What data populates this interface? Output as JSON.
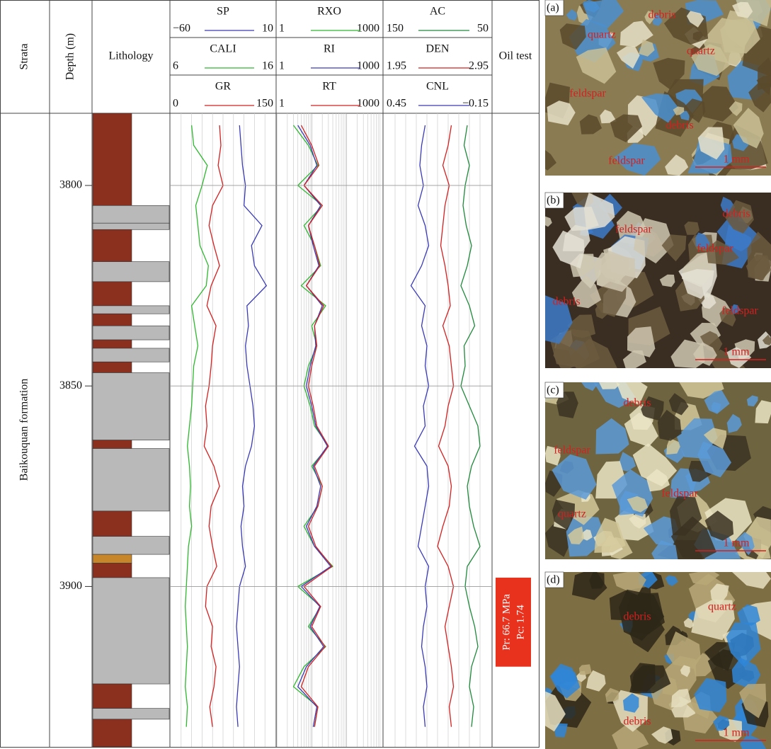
{
  "header": {
    "strata": "Strata",
    "depth": "Depth (m)",
    "lithology": "Lithology",
    "oil_test": "Oil test"
  },
  "formation": "Baikouquan formation",
  "depth_axis": {
    "lim": [
      3782,
      3940
    ],
    "ticks": [
      3800,
      3850,
      3900
    ]
  },
  "depths": [
    3785,
    3790,
    3795,
    3800,
    3805,
    3810,
    3815,
    3820,
    3825,
    3830,
    3835,
    3840,
    3845,
    3850,
    3855,
    3860,
    3865,
    3870,
    3875,
    3880,
    3885,
    3890,
    3895,
    3900,
    3905,
    3910,
    3915,
    3920,
    3925,
    3930,
    3935
  ],
  "tracks": [
    {
      "log": false,
      "curves": [
        {
          "name": "SP",
          "color": "#3a3ab8",
          "lim": [
            {
              "value": -60,
              "label": "−60"
            },
            10
          ],
          "values": [
            -14,
            -13,
            -12,
            -10,
            -11,
            1,
            -6,
            -4,
            4,
            -9,
            -8,
            -10,
            -9,
            -7,
            -5,
            -4,
            -6,
            -10,
            -12,
            -11,
            -13,
            -12,
            -10,
            -14,
            -15,
            -16,
            -15,
            -14,
            -15,
            -16,
            -15
          ]
        },
        {
          "name": "CALI",
          "color": "#2db82d",
          "lim": [
            6,
            16
          ],
          "values": [
            8.0,
            8.2,
            9.5,
            9.0,
            8.4,
            8.6,
            8.8,
            9.6,
            9.4,
            8.0,
            8.3,
            8.6,
            8.2,
            8.1,
            8.0,
            7.8,
            7.6,
            7.8,
            7.9,
            7.8,
            8.0,
            7.7,
            7.6,
            7.5,
            7.4,
            7.5,
            7.6,
            7.5,
            7.4,
            7.6,
            7.5
          ]
        },
        {
          "name": "GR",
          "color": "#d42020",
          "lim": [
            0,
            150
          ],
          "values": [
            70,
            72,
            68,
            75,
            60,
            55,
            62,
            70,
            58,
            52,
            65,
            60,
            58,
            55,
            50,
            52,
            48,
            62,
            70,
            58,
            55,
            60,
            66,
            52,
            50,
            60,
            58,
            65,
            62,
            56,
            60
          ]
        }
      ]
    },
    {
      "log": true,
      "curves": [
        {
          "name": "RXO",
          "color": "#2db82d",
          "lim": [
            1,
            1000
          ],
          "values": [
            3,
            8,
            15,
            4,
            20,
            6,
            12,
            18,
            5,
            25,
            10,
            14,
            8,
            6,
            9,
            12,
            30,
            10,
            20,
            15,
            6,
            12,
            40,
            4,
            18,
            8,
            25,
            6,
            3,
            15,
            12
          ]
        },
        {
          "name": "RI",
          "color": "#3a3ab8",
          "lim": [
            1,
            1000
          ],
          "values": [
            4,
            9,
            14,
            6,
            18,
            8,
            11,
            16,
            7,
            20,
            12,
            13,
            9,
            7,
            10,
            13,
            28,
            11,
            18,
            14,
            7,
            12,
            35,
            5,
            17,
            9,
            22,
            7,
            4,
            14,
            11
          ]
        },
        {
          "name": "RT",
          "color": "#d42020",
          "lim": [
            1,
            1000
          ],
          "values": [
            5,
            10,
            16,
            6,
            20,
            8,
            12,
            17,
            7,
            22,
            12,
            14,
            10,
            8,
            11,
            14,
            30,
            12,
            20,
            15,
            8,
            13,
            38,
            6,
            18,
            10,
            24,
            8,
            5,
            15,
            12
          ]
        }
      ]
    },
    {
      "log": false,
      "curves": [
        {
          "name": "AC",
          "color": "#1e8a3a",
          "lim": [
            150,
            50
          ],
          "values": [
            72,
            75,
            70,
            74,
            76,
            73,
            68,
            72,
            78,
            70,
            65,
            75,
            74,
            78,
            70,
            62,
            60,
            68,
            72,
            70,
            66,
            60,
            72,
            74,
            70,
            65,
            62,
            68,
            70,
            66,
            68
          ]
        },
        {
          "name": "DEN",
          "color": "#d42020",
          "lim": [
            1.95,
            2.95
          ],
          "values": [
            2.58,
            2.55,
            2.5,
            2.56,
            2.52,
            2.5,
            2.48,
            2.52,
            2.55,
            2.57,
            2.5,
            2.56,
            2.58,
            2.6,
            2.55,
            2.52,
            2.46,
            2.55,
            2.58,
            2.56,
            2.5,
            2.45,
            2.55,
            2.6,
            2.56,
            2.52,
            2.55,
            2.58,
            2.6,
            2.56,
            2.58
          ]
        },
        {
          "name": "CNL",
          "color": "#3a3ab8",
          "lim": [
            0.45,
            {
              "value": -0.15,
              "label": "−0.15"
            }
          ],
          "values": [
            0.22,
            0.24,
            0.25,
            0.23,
            0.26,
            0.22,
            0.2,
            0.24,
            0.3,
            0.22,
            0.24,
            0.21,
            0.22,
            0.2,
            0.23,
            0.22,
            0.28,
            0.21,
            0.2,
            0.22,
            0.24,
            0.26,
            0.2,
            0.22,
            0.21,
            0.23,
            0.24,
            0.22,
            0.21,
            0.23,
            0.22
          ]
        }
      ]
    }
  ],
  "lithology": [
    {
      "top": 3782,
      "bottom": 3805,
      "color": "#8b2f1f"
    },
    {
      "top": 3805,
      "bottom": 3809.4,
      "color": "#b9b9b9"
    },
    {
      "top": 3809.4,
      "bottom": 3811,
      "color": "#b9b9b9"
    },
    {
      "top": 3811,
      "bottom": 3819,
      "color": "#8b2f1f"
    },
    {
      "top": 3819,
      "bottom": 3824,
      "color": "#b9b9b9"
    },
    {
      "top": 3824,
      "bottom": 3830,
      "color": "#8b2f1f"
    },
    {
      "top": 3830,
      "bottom": 3832,
      "color": "#b9b9b9"
    },
    {
      "top": 3832,
      "bottom": 3835,
      "color": "#8b2f1f"
    },
    {
      "top": 3835,
      "bottom": 3838.5,
      "color": "#b9b9b9"
    },
    {
      "top": 3838.5,
      "bottom": 3840.6,
      "color": "#8b2f1f"
    },
    {
      "top": 3840.6,
      "bottom": 3844,
      "color": "#b9b9b9"
    },
    {
      "top": 3844,
      "bottom": 3846.7,
      "color": "#8b2f1f"
    },
    {
      "top": 3846.7,
      "bottom": 3863.5,
      "color": "#b9b9b9"
    },
    {
      "top": 3863.5,
      "bottom": 3865.6,
      "color": "#8b2f1f"
    },
    {
      "top": 3865.6,
      "bottom": 3881.2,
      "color": "#b9b9b9"
    },
    {
      "top": 3881.2,
      "bottom": 3887.5,
      "color": "#8b2f1f"
    },
    {
      "top": 3887.5,
      "bottom": 3892,
      "color": "#b9b9b9"
    },
    {
      "top": 3892,
      "bottom": 3894.2,
      "color": "#c8862a"
    },
    {
      "top": 3894.2,
      "bottom": 3897.8,
      "color": "#8b2f1f"
    },
    {
      "top": 3897.8,
      "bottom": 3924.3,
      "color": "#b9b9b9"
    },
    {
      "top": 3924.3,
      "bottom": 3930.4,
      "color": "#8b2f1f"
    },
    {
      "top": 3930.4,
      "bottom": 3933.1,
      "color": "#b9b9b9"
    },
    {
      "top": 3933.1,
      "bottom": 3940,
      "color": "#8b2f1f"
    }
  ],
  "oil_test": {
    "top": 3897.8,
    "bottom": 3920,
    "lines": [
      "Pr: 66.7 MPa",
      "Pc: 1.74"
    ]
  },
  "photos": [
    {
      "tag": "(a)",
      "labels": [
        "debris",
        "quartz",
        "quartz",
        "feldspar",
        "debris",
        "feldspar"
      ],
      "scale": "1 mm"
    },
    {
      "tag": "(b)",
      "labels": [
        "feldspar",
        "debris",
        "feldspar",
        "debris",
        "feldspar"
      ],
      "scale": "1 mm"
    },
    {
      "tag": "(c)",
      "labels": [
        "debris",
        "feldspar",
        "feldspar",
        "quartz"
      ],
      "scale": "1 mm"
    },
    {
      "tag": "(d)",
      "labels": [
        "quartz",
        "debris",
        "debris"
      ],
      "scale": "1 mm"
    }
  ]
}
